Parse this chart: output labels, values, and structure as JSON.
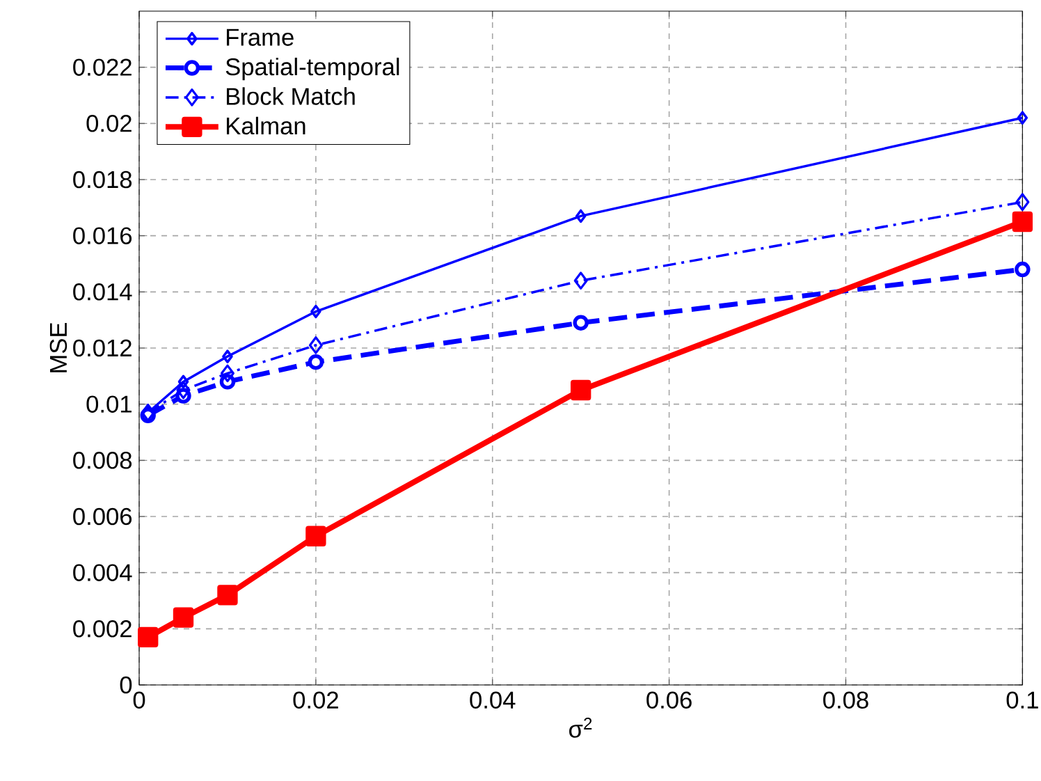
{
  "chart_data": {
    "type": "line",
    "xlabel": "σ$^{2}$",
    "ylabel": "MSE",
    "x": [
      0.001,
      0.005,
      0.01,
      0.02,
      0.05,
      0.1
    ],
    "series": [
      {
        "name": "Frame",
        "color": "#0000ff",
        "marker": "diamond",
        "line_style": "solid",
        "values": [
          0.0097,
          0.0108,
          0.0117,
          0.0133,
          0.0167,
          0.0202
        ]
      },
      {
        "name": "Spatial-temporal",
        "color": "#0000ff",
        "marker": "circle",
        "line_style": "dashed",
        "values": [
          0.0096,
          0.0103,
          0.0108,
          0.0115,
          0.0129,
          0.0148
        ]
      },
      {
        "name": "Block Match",
        "color": "#0000ff",
        "marker": "diamond",
        "line_style": "dashdot",
        "values": [
          0.0097,
          0.0105,
          0.0111,
          0.0121,
          0.0144,
          0.0172
        ]
      },
      {
        "name": "Kalman",
        "color": "#ff0000",
        "marker": "square",
        "line_style": "solid",
        "values": [
          0.0017,
          0.0024,
          0.0032,
          0.0053,
          0.0105,
          0.0165
        ]
      }
    ],
    "xlim": [
      0,
      0.1
    ],
    "xticks": [
      0,
      0.02,
      0.04,
      0.06,
      0.08,
      0.1
    ],
    "ylim": [
      0,
      0.024
    ],
    "yticks": [
      0,
      0.002,
      0.004,
      0.006,
      0.008,
      0.01,
      0.012,
      0.014,
      0.016,
      0.018,
      0.02,
      0.022
    ],
    "grid": true,
    "legend": "top left"
  }
}
